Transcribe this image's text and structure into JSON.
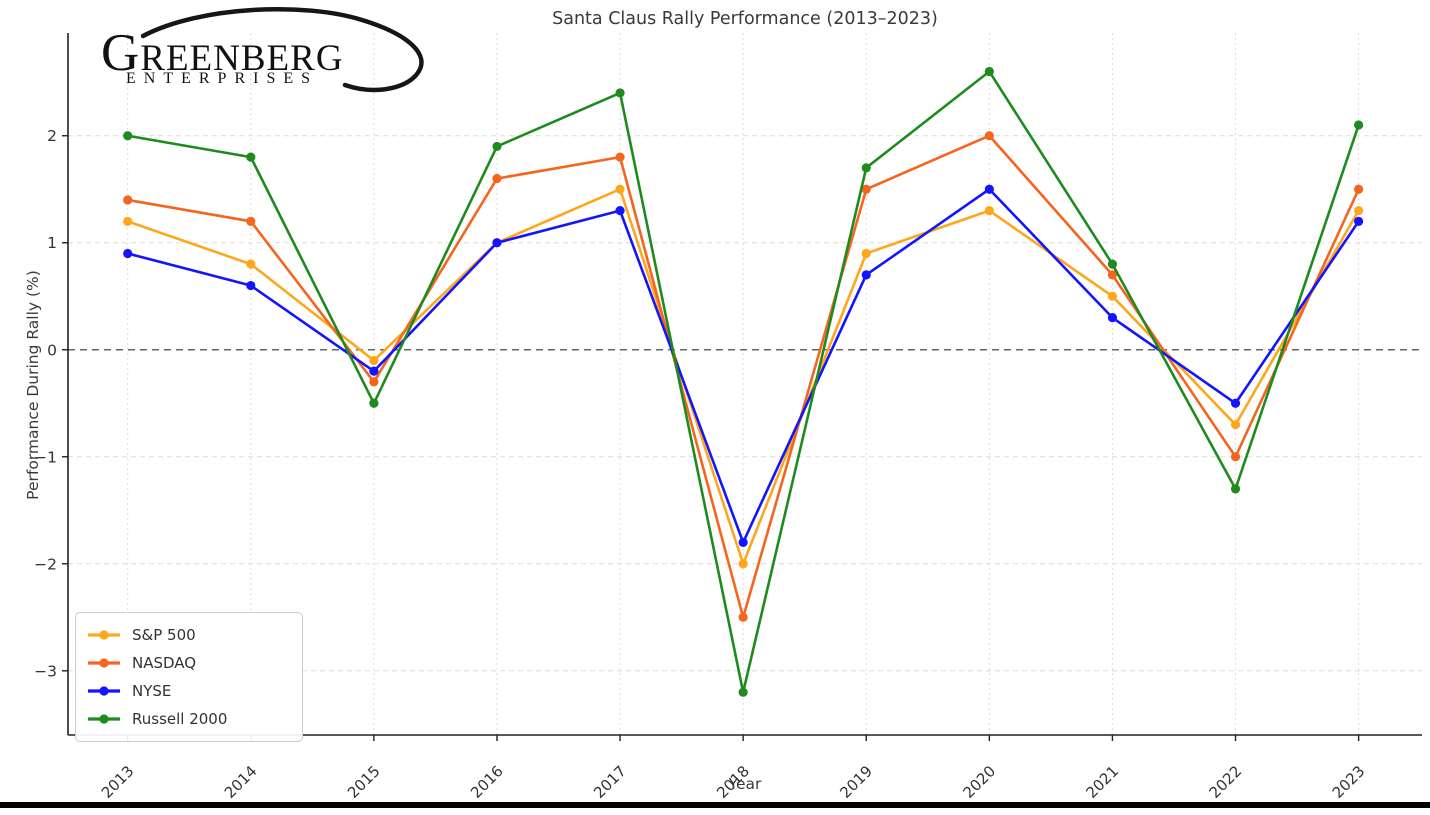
{
  "logo": {
    "name": "GREENBERG",
    "subtitle": "ENTERPRISES"
  },
  "chart_data": {
    "type": "line",
    "title": "Santa Claus Rally Performance (2013–2023)",
    "xlabel": "Year",
    "ylabel": "Performance During Rally (%)",
    "categories": [
      2013,
      2014,
      2015,
      2016,
      2017,
      2018,
      2019,
      2020,
      2021,
      2022,
      2023
    ],
    "series": [
      {
        "name": "S&P 500",
        "color": "#ffa71c",
        "values": [
          1.2,
          0.8,
          -0.1,
          1.0,
          1.5,
          -2.0,
          0.9,
          1.3,
          0.5,
          -0.7,
          1.3
        ]
      },
      {
        "name": "NASDAQ",
        "color": "#f4651f",
        "values": [
          1.4,
          1.2,
          -0.3,
          1.6,
          1.8,
          -2.5,
          1.5,
          2.0,
          0.7,
          -1.0,
          1.5
        ]
      },
      {
        "name": "NYSE",
        "color": "#1414ff",
        "values": [
          0.9,
          0.6,
          -0.2,
          1.0,
          1.3,
          -1.8,
          0.7,
          1.5,
          0.3,
          -0.5,
          1.2
        ]
      },
      {
        "name": "Russell 2000",
        "color": "#1f8b1f",
        "values": [
          2.0,
          1.8,
          -0.5,
          1.9,
          2.4,
          -3.2,
          1.7,
          2.6,
          0.8,
          -1.3,
          2.1
        ]
      }
    ],
    "yticks": [
      2,
      1,
      0,
      -1,
      -2,
      -3
    ],
    "ylim": [
      -3.6,
      2.96
    ],
    "xlim": [
      2012.515,
      2023.515
    ],
    "grid": true,
    "zero_line": {
      "value": 0,
      "color": "#666666",
      "style": "dashed"
    },
    "legend_position": "lower left",
    "axis_color": "#222222",
    "grid_color": "#dcdcdc",
    "tick_label_color": "#333333"
  }
}
